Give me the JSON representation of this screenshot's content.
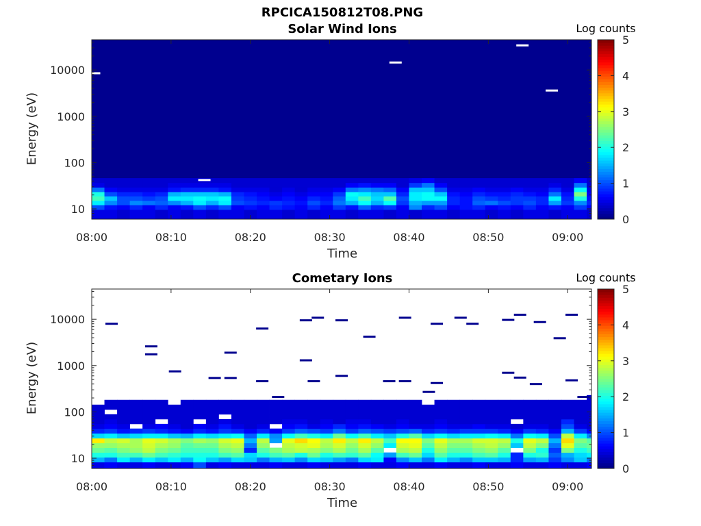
{
  "figure_title": "RPCICA150812T08.PNG",
  "colormap": "jet",
  "chart_data": [
    {
      "type": "heatmap",
      "title": "Solar Wind Ions",
      "xlabel": "Time",
      "ylabel": "Energy (eV)",
      "yscale": "log",
      "ylim": [
        6,
        45000
      ],
      "xlim": [
        "08:00",
        "09:03"
      ],
      "xticks": [
        "08:00",
        "08:10",
        "08:20",
        "08:30",
        "08:40",
        "08:50",
        "09:00"
      ],
      "yticks": [
        "10",
        "100",
        "1000",
        "10000"
      ],
      "ytick_values": [
        10,
        100,
        1000,
        10000
      ],
      "colorbar": {
        "label": "Log counts",
        "min": 0,
        "max": 5,
        "ticks": [
          "0",
          "1",
          "2",
          "3",
          "4",
          "5"
        ]
      },
      "background_level": 0.35,
      "background_color": "#00008f",
      "row_energies_eV": [
        8.5,
        11,
        13.5,
        17,
        21,
        26,
        33,
        41,
        52,
        65
      ],
      "time_bin_minutes": 1.6,
      "bins_rows": [
        [
          0.5,
          0.5,
          0.4,
          0.5,
          0.5,
          0.4,
          0.5,
          0.4,
          0.5,
          0.4,
          0.5,
          0.5,
          0.4,
          0.5,
          0.5,
          0.4,
          0.5,
          0.4,
          0.5,
          0.5,
          0.4,
          0.5,
          0.5,
          0.4,
          0.5,
          0.4,
          0.5,
          0.5,
          0.4,
          0.5,
          0.5,
          0.4,
          0.5,
          0.4,
          0.5,
          0.5,
          0.4,
          0.5,
          0.5,
          0.4
        ],
        [
          1.0,
          0.7,
          0.6,
          0.8,
          0.6,
          0.8,
          0.6,
          0.7,
          1.0,
          0.8,
          1.0,
          0.6,
          0.7,
          0.6,
          0.8,
          0.7,
          0.6,
          0.8,
          0.6,
          0.9,
          0.7,
          1.1,
          0.8,
          0.9,
          0.6,
          1.3,
          0.8,
          1.0,
          0.6,
          0.7,
          0.8,
          0.6,
          0.7,
          0.6,
          0.8,
          0.6,
          0.7,
          0.6,
          0.9,
          0.6
        ],
        [
          1.8,
          1.3,
          1.0,
          1.3,
          1.2,
          1.1,
          1.3,
          1.5,
          1.8,
          1.5,
          1.8,
          1.0,
          0.9,
          0.8,
          0.9,
          0.8,
          0.7,
          1.0,
          0.8,
          1.2,
          1.5,
          1.9,
          1.5,
          1.9,
          0.9,
          1.5,
          1.4,
          1.4,
          0.8,
          0.7,
          1.1,
          1.2,
          1.0,
          0.9,
          1.0,
          0.8,
          1.4,
          0.9,
          1.3,
          0.8
        ],
        [
          2.2,
          1.6,
          1.0,
          1.0,
          0.9,
          1.0,
          1.8,
          1.8,
          1.9,
          1.8,
          1.9,
          0.9,
          0.8,
          0.7,
          0.6,
          0.7,
          0.6,
          0.8,
          0.7,
          1.1,
          1.8,
          2.2,
          1.7,
          2.3,
          1.0,
          1.8,
          1.9,
          1.9,
          0.8,
          0.7,
          1.0,
          0.9,
          0.8,
          0.9,
          0.9,
          0.8,
          1.8,
          0.8,
          2.0,
          0.7
        ],
        [
          2.0,
          1.0,
          0.8,
          0.8,
          0.7,
          0.8,
          1.5,
          1.6,
          1.6,
          1.6,
          1.5,
          0.8,
          0.7,
          0.6,
          0.5,
          0.6,
          0.5,
          0.6,
          0.6,
          0.9,
          1.9,
          1.8,
          1.6,
          1.6,
          0.8,
          1.8,
          1.9,
          1.6,
          0.7,
          0.6,
          0.8,
          0.7,
          0.7,
          0.8,
          0.7,
          0.6,
          1.2,
          0.7,
          2.5,
          0.6
        ],
        [
          1.2,
          0.6,
          0.5,
          0.5,
          0.5,
          0.5,
          0.7,
          0.8,
          0.8,
          0.8,
          0.7,
          0.5,
          0.5,
          0.5,
          0.4,
          0.5,
          0.4,
          0.5,
          0.5,
          0.6,
          1.2,
          1.3,
          1.2,
          1.1,
          0.6,
          1.6,
          1.6,
          1.0,
          0.5,
          0.5,
          0.6,
          0.5,
          0.5,
          0.6,
          0.5,
          0.5,
          0.8,
          0.5,
          1.9,
          0.5
        ],
        [
          0.5,
          0.4,
          0.4,
          0.4,
          0.4,
          0.4,
          0.5,
          0.5,
          0.5,
          0.5,
          0.5,
          0.4,
          0.4,
          0.4,
          0.4,
          0.4,
          0.4,
          0.4,
          0.4,
          0.4,
          0.6,
          0.7,
          0.6,
          0.6,
          0.4,
          0.9,
          1.2,
          0.6,
          0.4,
          0.4,
          0.4,
          0.4,
          0.4,
          0.4,
          0.4,
          0.4,
          0.5,
          0.4,
          1.2,
          0.4
        ],
        [
          0.4,
          0.4,
          0.4,
          0.4,
          0.4,
          0.4,
          0.4,
          0.4,
          0.4,
          0.4,
          0.4,
          0.4,
          0.4,
          0.4,
          0.4,
          0.4,
          0.4,
          0.4,
          0.4,
          0.4,
          0.4,
          0.4,
          0.4,
          0.4,
          0.4,
          0.5,
          0.6,
          0.4,
          0.4,
          0.4,
          0.4,
          0.4,
          0.4,
          0.4,
          0.4,
          0.4,
          0.4,
          0.4,
          0.6,
          0.4
        ]
      ],
      "specks": [
        {
          "t": "08:14.2",
          "e": 42,
          "level": null
        },
        {
          "t": "08:38.3",
          "e": 14500,
          "level": null
        },
        {
          "t": "08:54.3",
          "e": 34000,
          "level": null
        },
        {
          "t": "08:58.0",
          "e": 3600,
          "level": null
        },
        {
          "t": "08:00.3",
          "e": 8500,
          "level": null
        }
      ]
    },
    {
      "type": "heatmap",
      "title": "Cometary Ions",
      "xlabel": "Time",
      "ylabel": "Energy (eV)",
      "yscale": "log",
      "ylim": [
        6,
        45000
      ],
      "xlim": [
        "08:00",
        "09:03"
      ],
      "xticks": [
        "08:00",
        "08:10",
        "08:20",
        "08:30",
        "08:40",
        "08:50",
        "09:00"
      ],
      "yticks": [
        "10",
        "100",
        "1000",
        "10000"
      ],
      "ytick_values": [
        10,
        100,
        1000,
        10000
      ],
      "colorbar": {
        "label": "Log counts",
        "min": 0,
        "max": 5,
        "ticks": [
          "0",
          "1",
          "2",
          "3",
          "4",
          "5"
        ]
      },
      "row_energies_eV": [
        7.3,
        9.3,
        11.8,
        15,
        19,
        24,
        30.5,
        39,
        49,
        62,
        79,
        100,
        127,
        162,
        205
      ],
      "time_bin_minutes": 1.6,
      "bins_rows": [
        [
          0.5,
          0.6,
          0.5,
          0.5,
          0.6,
          0.5,
          0.5,
          0.6,
          1.0,
          0.5,
          0.6,
          0.5,
          0.5,
          0.5,
          0.6,
          0.5,
          0.5,
          0.6,
          0.5,
          0.5,
          0.5,
          0.6,
          0.5,
          0.5,
          0.6,
          0.5,
          0.5,
          0.6,
          0.5,
          0.5,
          0.6,
          0.5,
          0.5,
          0.6,
          0.5,
          0.5,
          0.6,
          0.5,
          0.5,
          0.6
        ],
        [
          1.5,
          1.2,
          1.8,
          1.5,
          1.8,
          1.6,
          1.8,
          1.5,
          1.9,
          1.6,
          1.4,
          1.7,
          1.6,
          1.2,
          1.5,
          1.6,
          1.3,
          1.7,
          1.6,
          1.4,
          1.2,
          1.7,
          1.8,
          0.6,
          1.3,
          1.6,
          1.2,
          1.8,
          1.5,
          1.3,
          1.6,
          1.6,
          1.5,
          0.8,
          1.4,
          1.5,
          0.9,
          1.3,
          1.6,
          1.2
        ],
        [
          2.0,
          2.0,
          2.2,
          2.2,
          2.4,
          2.2,
          2.1,
          2.0,
          2.0,
          2.0,
          2.2,
          2.3,
          1.7,
          2.0,
          2.2,
          2.3,
          2.0,
          2.4,
          2.0,
          2.2,
          2.1,
          2.3,
          1.9,
          1.4,
          2.2,
          2.4,
          1.7,
          2.3,
          2.0,
          2.0,
          2.2,
          2.3,
          2.0,
          0.8,
          2.0,
          2.1,
          1.1,
          1.5,
          1.7,
          1.8
        ],
        [
          2.4,
          2.3,
          2.5,
          2.6,
          2.8,
          2.5,
          2.4,
          2.2,
          2.2,
          2.2,
          2.5,
          2.6,
          0.8,
          2.3,
          2.5,
          2.7,
          2.8,
          2.7,
          2.5,
          2.7,
          2.4,
          2.7,
          2.3,
          -1.0,
          2.7,
          2.8,
          2.0,
          2.6,
          2.3,
          2.3,
          2.5,
          2.6,
          2.3,
          -1.0,
          2.5,
          2.0,
          0.9,
          2.5,
          2.0,
          2.2
        ],
        [
          2.6,
          2.6,
          2.7,
          2.7,
          2.9,
          2.7,
          2.6,
          2.3,
          2.4,
          2.4,
          2.7,
          2.8,
          1.2,
          2.6,
          -1.0,
          2.8,
          2.9,
          3.0,
          2.7,
          2.9,
          2.6,
          2.9,
          2.6,
          1.8,
          2.9,
          3.0,
          2.3,
          2.8,
          2.5,
          2.5,
          2.7,
          2.8,
          2.6,
          1.6,
          2.8,
          2.5,
          1.2,
          3.0,
          2.3,
          2.4
        ],
        [
          3.2,
          2.8,
          2.9,
          2.7,
          3.0,
          2.9,
          2.7,
          2.5,
          2.7,
          2.6,
          2.9,
          3.0,
          1.5,
          2.8,
          1.4,
          3.0,
          3.3,
          3.1,
          2.8,
          3.2,
          2.8,
          3.2,
          2.8,
          2.2,
          3.1,
          3.1,
          2.5,
          3.0,
          2.7,
          2.7,
          2.9,
          2.9,
          2.8,
          2.0,
          3.0,
          2.8,
          1.5,
          3.3,
          2.5,
          2.3
        ],
        [
          1.7,
          1.8,
          1.6,
          1.7,
          1.8,
          1.8,
          1.6,
          1.5,
          1.8,
          1.7,
          1.8,
          1.9,
          1.1,
          1.8,
          1.3,
          1.9,
          2.2,
          2.0,
          1.8,
          2.4,
          1.9,
          2.2,
          1.8,
          1.6,
          2.0,
          2.3,
          1.7,
          1.9,
          1.7,
          1.8,
          1.8,
          1.9,
          1.8,
          1.2,
          1.9,
          1.8,
          1.0,
          2.8,
          1.8,
          1.3
        ],
        [
          0.8,
          0.9,
          0.7,
          0.8,
          0.9,
          0.8,
          0.7,
          0.6,
          0.8,
          0.7,
          0.9,
          0.8,
          0.6,
          0.8,
          0.6,
          0.9,
          1.1,
          1.0,
          0.9,
          1.2,
          0.9,
          1.1,
          1.0,
          0.9,
          1.0,
          1.1,
          0.8,
          0.9,
          0.8,
          0.9,
          0.9,
          0.9,
          0.8,
          0.6,
          0.9,
          0.8,
          0.6,
          1.5,
          0.9,
          0.6
        ],
        [
          0.5,
          0.6,
          0.5,
          -1.0,
          0.5,
          0.6,
          0.5,
          0.4,
          0.6,
          0.5,
          0.7,
          0.5,
          0.4,
          0.5,
          -1.0,
          0.6,
          0.7,
          0.5,
          0.6,
          0.8,
          0.6,
          0.7,
          0.6,
          0.5,
          0.6,
          0.5,
          0.5,
          0.6,
          0.5,
          0.5,
          0.6,
          0.5,
          0.5,
          0.4,
          0.5,
          0.5,
          0.4,
          1.0,
          0.5,
          0.4
        ],
        [
          0.4,
          0.5,
          0.4,
          0.4,
          0.4,
          -1.0,
          0.4,
          0.4,
          -1.0,
          0.4,
          0.5,
          0.4,
          0.4,
          0.4,
          0.4,
          0.5,
          0.5,
          0.4,
          0.5,
          0.4,
          0.5,
          0.5,
          0.4,
          0.4,
          0.5,
          0.4,
          0.4,
          0.5,
          0.4,
          0.4,
          0.4,
          0.4,
          0.4,
          -1.0,
          0.4,
          0.4,
          0.4,
          0.8,
          0.4,
          0.4
        ],
        [
          0.4,
          0.4,
          0.4,
          0.4,
          0.4,
          0.4,
          0.4,
          0.4,
          0.4,
          0.4,
          -1.0,
          0.4,
          0.4,
          0.4,
          0.4,
          0.4,
          0.4,
          0.4,
          0.4,
          0.4,
          0.4,
          0.4,
          0.4,
          0.4,
          0.4,
          0.4,
          0.4,
          0.4,
          0.4,
          0.4,
          0.4,
          0.4,
          0.4,
          0.4,
          0.4,
          0.4,
          0.4,
          0.4,
          0.4,
          0.4
        ],
        [
          0.4,
          -1.0,
          0.4,
          0.4,
          0.4,
          0.4,
          0.4,
          0.4,
          0.4,
          0.4,
          0.4,
          0.4,
          0.4,
          0.4,
          0.4,
          0.4,
          0.4,
          0.4,
          0.4,
          0.4,
          0.4,
          0.4,
          0.4,
          0.4,
          0.4,
          0.4,
          0.4,
          0.4,
          0.4,
          0.4,
          0.4,
          0.4,
          0.4,
          0.4,
          0.4,
          0.4,
          0.4,
          0.4,
          0.4,
          0.4
        ],
        [
          0.4,
          0.4,
          0.4,
          0.4,
          0.4,
          0.4,
          0.4,
          0.4,
          0.4,
          0.4,
          0.4,
          0.4,
          0.4,
          0.4,
          0.4,
          0.4,
          0.4,
          0.4,
          0.4,
          0.4,
          0.4,
          0.4,
          0.4,
          0.4,
          0.4,
          0.4,
          0.4,
          0.4,
          0.4,
          0.4,
          0.4,
          0.4,
          0.4,
          0.4,
          0.4,
          0.4,
          0.4,
          0.4,
          0.4,
          0.4
        ],
        [
          -1.0,
          0.4,
          0.4,
          0.4,
          0.4,
          0.4,
          -1.0,
          0.4,
          0.4,
          0.4,
          0.4,
          0.4,
          0.4,
          0.4,
          0.4,
          0.4,
          0.4,
          0.4,
          0.4,
          0.4,
          0.4,
          0.4,
          0.4,
          0.4,
          0.4,
          0.4,
          -1.0,
          0.4,
          0.4,
          0.4,
          0.4,
          0.4,
          0.4,
          0.4,
          0.4,
          0.4,
          0.4,
          0.4,
          0.4,
          0.4
        ],
        [
          -1.0,
          -1.0,
          -1.0,
          -1.0,
          -1.0,
          -1.0,
          -1.0,
          -1.0,
          -1.0,
          -1.0,
          -1.0,
          -1.0,
          -1.0,
          -1.0,
          -1.0,
          -1.0,
          -1.0,
          -1.0,
          -1.0,
          -1.0,
          -1.0,
          -1.0,
          -1.0,
          -1.0,
          -1.0,
          -1.0,
          -1.0,
          -1.0,
          -1.0,
          -1.0,
          -1.0,
          -1.0,
          -1.0,
          -1.0,
          -1.0,
          -1.0,
          -1.0,
          -1.0,
          -1.0,
          0.4
        ]
      ],
      "specks": [
        {
          "t": "08:02.5",
          "e": 8000
        },
        {
          "t": "08:07.5",
          "e": 2600
        },
        {
          "t": "08:07.5",
          "e": 1750
        },
        {
          "t": "08:10.5",
          "e": 750
        },
        {
          "t": "08:15.5",
          "e": 540
        },
        {
          "t": "08:17.5",
          "e": 1900
        },
        {
          "t": "08:17.5",
          "e": 540
        },
        {
          "t": "08:21.5",
          "e": 6300
        },
        {
          "t": "08:21.5",
          "e": 460
        },
        {
          "t": "08:23.5",
          "e": 210
        },
        {
          "t": "08:27.0",
          "e": 9500
        },
        {
          "t": "08:27.0",
          "e": 1300
        },
        {
          "t": "08:28.5",
          "e": 10800
        },
        {
          "t": "08:28.0",
          "e": 460
        },
        {
          "t": "08:31.5",
          "e": 9500
        },
        {
          "t": "08:31.5",
          "e": 600
        },
        {
          "t": "08:35.0",
          "e": 4200
        },
        {
          "t": "08:37.5",
          "e": 460
        },
        {
          "t": "08:39.5",
          "e": 10800
        },
        {
          "t": "08:39.5",
          "e": 460
        },
        {
          "t": "08:42.5",
          "e": 270
        },
        {
          "t": "08:43.5",
          "e": 420
        },
        {
          "t": "08:43.5",
          "e": 8000
        },
        {
          "t": "08:46.5",
          "e": 10800
        },
        {
          "t": "08:48.0",
          "e": 8000
        },
        {
          "t": "08:52.5",
          "e": 9700
        },
        {
          "t": "08:52.5",
          "e": 700
        },
        {
          "t": "08:54.0",
          "e": 12500
        },
        {
          "t": "08:54.0",
          "e": 550
        },
        {
          "t": "08:56.5",
          "e": 8700
        },
        {
          "t": "08:56.0",
          "e": 400
        },
        {
          "t": "08:59.0",
          "e": 3900
        },
        {
          "t": "09:00.5",
          "e": 12500
        },
        {
          "t": "09:00.5",
          "e": 480
        },
        {
          "t": "09:02.0",
          "e": 210
        }
      ]
    }
  ]
}
